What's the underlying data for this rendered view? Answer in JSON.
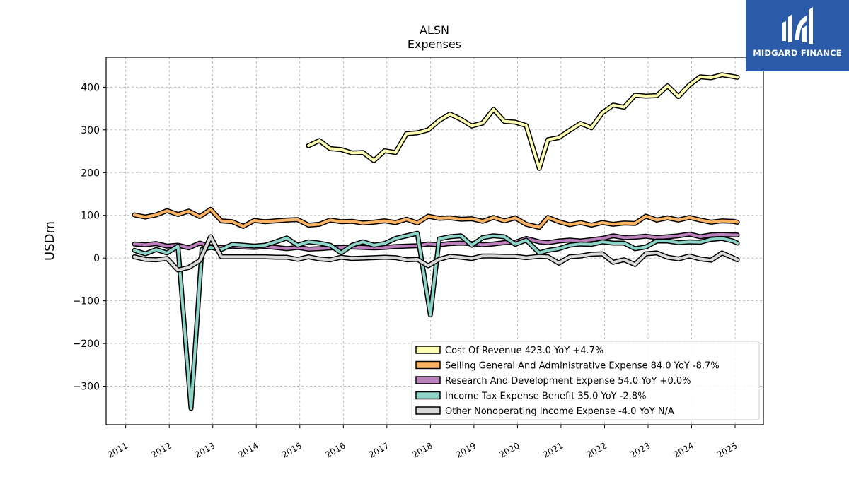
{
  "chart_data": {
    "type": "line",
    "title": "ALSN",
    "subtitle": "Expenses",
    "ylabel": "USDm",
    "xlabel": "",
    "xlim": [
      2010.55,
      2025.65
    ],
    "ylim": [
      -390,
      470
    ],
    "yticks": [
      -300,
      -200,
      -100,
      0,
      100,
      200,
      300,
      400
    ],
    "ytick_labels": [
      "−300",
      "−200",
      "−100",
      "0",
      "100",
      "200",
      "300",
      "400"
    ],
    "xticks": [
      2011,
      2012,
      2013,
      2014,
      2015,
      2016,
      2017,
      2018,
      2019,
      2020,
      2021,
      2022,
      2023,
      2024,
      2025
    ],
    "xtick_labels": [
      "2011",
      "2012",
      "2013",
      "2014",
      "2015",
      "2016",
      "2017",
      "2018",
      "2019",
      "2020",
      "2021",
      "2022",
      "2023",
      "2024",
      "2025"
    ],
    "grid": true,
    "legend_position": "lower-right",
    "series": [
      {
        "name": "Cost Of Revenue",
        "legend_label": "Cost Of Revenue  423.0 YoY +4.7%",
        "color": "#ffffb3",
        "points": [
          [
            2015.2,
            263
          ],
          [
            2015.45,
            275
          ],
          [
            2015.7,
            256
          ],
          [
            2015.95,
            254
          ],
          [
            2016.2,
            246
          ],
          [
            2016.45,
            247
          ],
          [
            2016.7,
            228
          ],
          [
            2016.95,
            251
          ],
          [
            2017.2,
            247
          ],
          [
            2017.45,
            291
          ],
          [
            2017.7,
            293
          ],
          [
            2017.95,
            300
          ],
          [
            2018.2,
            322
          ],
          [
            2018.45,
            337
          ],
          [
            2018.7,
            325
          ],
          [
            2018.95,
            309
          ],
          [
            2019.2,
            316
          ],
          [
            2019.45,
            348
          ],
          [
            2019.7,
            320
          ],
          [
            2019.95,
            318
          ],
          [
            2020.2,
            310
          ],
          [
            2020.5,
            210
          ],
          [
            2020.7,
            277
          ],
          [
            2020.95,
            282
          ],
          [
            2021.2,
            299
          ],
          [
            2021.45,
            315
          ],
          [
            2021.7,
            305
          ],
          [
            2021.95,
            340
          ],
          [
            2022.2,
            358
          ],
          [
            2022.45,
            353
          ],
          [
            2022.7,
            381
          ],
          [
            2022.95,
            379
          ],
          [
            2023.2,
            380
          ],
          [
            2023.45,
            403
          ],
          [
            2023.7,
            378
          ],
          [
            2023.95,
            405
          ],
          [
            2024.2,
            424
          ],
          [
            2024.45,
            422
          ],
          [
            2024.7,
            429
          ],
          [
            2024.95,
            425
          ],
          [
            2025.05,
            423
          ]
        ]
      },
      {
        "name": "Selling General And Administrative Expense",
        "legend_label": "Selling General And Administrative Expense  84.0 YoY -8.7%",
        "color": "#fdb462",
        "points": [
          [
            2011.2,
            101
          ],
          [
            2011.45,
            96
          ],
          [
            2011.7,
            101
          ],
          [
            2011.95,
            111
          ],
          [
            2012.2,
            102
          ],
          [
            2012.45,
            110
          ],
          [
            2012.7,
            97
          ],
          [
            2012.95,
            114
          ],
          [
            2013.2,
            87
          ],
          [
            2013.45,
            85
          ],
          [
            2013.7,
            74
          ],
          [
            2013.95,
            88
          ],
          [
            2014.2,
            85
          ],
          [
            2014.45,
            87
          ],
          [
            2014.7,
            89
          ],
          [
            2014.95,
            90
          ],
          [
            2015.2,
            77
          ],
          [
            2015.45,
            79
          ],
          [
            2015.7,
            89
          ],
          [
            2015.95,
            85
          ],
          [
            2016.2,
            86
          ],
          [
            2016.45,
            82
          ],
          [
            2016.7,
            84
          ],
          [
            2016.95,
            87
          ],
          [
            2017.2,
            83
          ],
          [
            2017.45,
            91
          ],
          [
            2017.7,
            82
          ],
          [
            2017.95,
            98
          ],
          [
            2018.2,
            93
          ],
          [
            2018.45,
            94
          ],
          [
            2018.7,
            91
          ],
          [
            2018.95,
            92
          ],
          [
            2019.2,
            86
          ],
          [
            2019.45,
            95
          ],
          [
            2019.7,
            87
          ],
          [
            2019.95,
            94
          ],
          [
            2020.2,
            79
          ],
          [
            2020.5,
            72
          ],
          [
            2020.7,
            95
          ],
          [
            2020.95,
            85
          ],
          [
            2021.2,
            78
          ],
          [
            2021.45,
            83
          ],
          [
            2021.7,
            77
          ],
          [
            2021.95,
            83
          ],
          [
            2022.2,
            79
          ],
          [
            2022.45,
            82
          ],
          [
            2022.7,
            81
          ],
          [
            2022.95,
            98
          ],
          [
            2023.2,
            89
          ],
          [
            2023.45,
            94
          ],
          [
            2023.7,
            89
          ],
          [
            2023.95,
            95
          ],
          [
            2024.2,
            89
          ],
          [
            2024.45,
            84
          ],
          [
            2024.7,
            87
          ],
          [
            2024.95,
            86
          ],
          [
            2025.05,
            84
          ]
        ]
      },
      {
        "name": "Research And Development Expense",
        "legend_label": "Research And Development Expense  54.0 YoY +0.0%",
        "color": "#bc80bd",
        "points": [
          [
            2011.2,
            33
          ],
          [
            2011.45,
            31
          ],
          [
            2011.7,
            34
          ],
          [
            2011.95,
            28
          ],
          [
            2012.2,
            30
          ],
          [
            2012.45,
            24
          ],
          [
            2012.7,
            35
          ],
          [
            2012.95,
            27
          ],
          [
            2013.2,
            25
          ],
          [
            2013.45,
            28
          ],
          [
            2013.7,
            26
          ],
          [
            2013.95,
            25
          ],
          [
            2014.2,
            27
          ],
          [
            2014.45,
            25
          ],
          [
            2014.7,
            22
          ],
          [
            2014.95,
            25
          ],
          [
            2015.2,
            21
          ],
          [
            2015.45,
            22
          ],
          [
            2015.7,
            24
          ],
          [
            2015.95,
            25
          ],
          [
            2016.2,
            26
          ],
          [
            2016.45,
            25
          ],
          [
            2016.7,
            24
          ],
          [
            2016.95,
            25
          ],
          [
            2017.2,
            27
          ],
          [
            2017.45,
            28
          ],
          [
            2017.7,
            29
          ],
          [
            2017.95,
            33
          ],
          [
            2018.2,
            31
          ],
          [
            2018.45,
            34
          ],
          [
            2018.7,
            35
          ],
          [
            2018.95,
            34
          ],
          [
            2019.2,
            31
          ],
          [
            2019.45,
            33
          ],
          [
            2019.7,
            36
          ],
          [
            2019.95,
            37
          ],
          [
            2020.2,
            46
          ],
          [
            2020.5,
            38
          ],
          [
            2020.7,
            36
          ],
          [
            2020.95,
            40
          ],
          [
            2021.2,
            42
          ],
          [
            2021.45,
            40
          ],
          [
            2021.7,
            43
          ],
          [
            2021.95,
            46
          ],
          [
            2022.2,
            52
          ],
          [
            2022.45,
            48
          ],
          [
            2022.7,
            49
          ],
          [
            2022.95,
            51
          ],
          [
            2023.2,
            48
          ],
          [
            2023.45,
            50
          ],
          [
            2023.7,
            52
          ],
          [
            2023.95,
            56
          ],
          [
            2024.2,
            50
          ],
          [
            2024.45,
            54
          ],
          [
            2024.7,
            55
          ],
          [
            2024.95,
            54
          ],
          [
            2025.05,
            54
          ]
        ]
      },
      {
        "name": "Income Tax Expense Benefit",
        "legend_label": "Income Tax Expense Benefit  35.0 YoY -2.8%",
        "color": "#8dd3c7",
        "points": [
          [
            2011.2,
            18
          ],
          [
            2011.45,
            10
          ],
          [
            2011.7,
            20
          ],
          [
            2011.95,
            12
          ],
          [
            2012.2,
            28
          ],
          [
            2012.5,
            -352
          ],
          [
            2012.75,
            20
          ],
          [
            2012.95,
            25
          ],
          [
            2013.2,
            20
          ],
          [
            2013.45,
            32
          ],
          [
            2013.7,
            30
          ],
          [
            2013.95,
            28
          ],
          [
            2014.2,
            30
          ],
          [
            2014.45,
            38
          ],
          [
            2014.7,
            47
          ],
          [
            2014.95,
            30
          ],
          [
            2015.2,
            38
          ],
          [
            2015.45,
            35
          ],
          [
            2015.7,
            30
          ],
          [
            2015.95,
            12
          ],
          [
            2016.2,
            30
          ],
          [
            2016.45,
            38
          ],
          [
            2016.7,
            30
          ],
          [
            2016.95,
            34
          ],
          [
            2017.2,
            46
          ],
          [
            2017.45,
            52
          ],
          [
            2017.7,
            58
          ],
          [
            2018.0,
            -133
          ],
          [
            2018.2,
            45
          ],
          [
            2018.45,
            50
          ],
          [
            2018.7,
            52
          ],
          [
            2018.95,
            30
          ],
          [
            2019.2,
            48
          ],
          [
            2019.45,
            52
          ],
          [
            2019.7,
            50
          ],
          [
            2019.95,
            32
          ],
          [
            2020.2,
            42
          ],
          [
            2020.5,
            12
          ],
          [
            2020.7,
            18
          ],
          [
            2020.95,
            22
          ],
          [
            2021.2,
            30
          ],
          [
            2021.45,
            33
          ],
          [
            2021.7,
            32
          ],
          [
            2021.95,
            38
          ],
          [
            2022.2,
            35
          ],
          [
            2022.45,
            35
          ],
          [
            2022.7,
            22
          ],
          [
            2022.95,
            26
          ],
          [
            2023.2,
            40
          ],
          [
            2023.45,
            40
          ],
          [
            2023.7,
            36
          ],
          [
            2023.95,
            38
          ],
          [
            2024.2,
            37
          ],
          [
            2024.45,
            44
          ],
          [
            2024.7,
            46
          ],
          [
            2024.95,
            40
          ],
          [
            2025.05,
            35
          ]
        ]
      },
      {
        "name": "Other Nonoperating Income Expense",
        "legend_label": "Other Nonoperating Income Expense  -4.0 YoY N/A",
        "color": "#d9d9d9",
        "points": [
          [
            2011.2,
            3
          ],
          [
            2011.45,
            -3
          ],
          [
            2011.7,
            -4
          ],
          [
            2011.95,
            -1
          ],
          [
            2012.2,
            -28
          ],
          [
            2012.45,
            -22
          ],
          [
            2012.7,
            -6
          ],
          [
            2012.95,
            50
          ],
          [
            2013.2,
            3
          ],
          [
            2013.45,
            3
          ],
          [
            2013.7,
            3
          ],
          [
            2013.95,
            3
          ],
          [
            2014.2,
            3
          ],
          [
            2014.45,
            2
          ],
          [
            2014.7,
            2
          ],
          [
            2014.95,
            -3
          ],
          [
            2015.2,
            3
          ],
          [
            2015.45,
            -2
          ],
          [
            2015.7,
            -4
          ],
          [
            2015.95,
            2
          ],
          [
            2016.2,
            -1
          ],
          [
            2016.45,
            0
          ],
          [
            2016.7,
            1
          ],
          [
            2016.95,
            2
          ],
          [
            2017.2,
            1
          ],
          [
            2017.45,
            -4
          ],
          [
            2017.7,
            -3
          ],
          [
            2017.95,
            -18
          ],
          [
            2018.2,
            -3
          ],
          [
            2018.45,
            4
          ],
          [
            2018.7,
            2
          ],
          [
            2018.95,
            -1
          ],
          [
            2019.2,
            5
          ],
          [
            2019.45,
            5
          ],
          [
            2019.7,
            4
          ],
          [
            2019.95,
            4
          ],
          [
            2020.2,
            1
          ],
          [
            2020.5,
            4
          ],
          [
            2020.7,
            3
          ],
          [
            2020.95,
            -12
          ],
          [
            2021.2,
            3
          ],
          [
            2021.45,
            5
          ],
          [
            2021.7,
            9
          ],
          [
            2021.95,
            10
          ],
          [
            2022.2,
            -10
          ],
          [
            2022.45,
            -4
          ],
          [
            2022.7,
            -15
          ],
          [
            2022.95,
            10
          ],
          [
            2023.2,
            12
          ],
          [
            2023.45,
            2
          ],
          [
            2023.7,
            -2
          ],
          [
            2023.95,
            5
          ],
          [
            2024.2,
            -2
          ],
          [
            2024.45,
            -5
          ],
          [
            2024.7,
            12
          ],
          [
            2024.95,
            1
          ],
          [
            2025.05,
            -4
          ]
        ]
      }
    ]
  },
  "logo": {
    "text": "MIDGARD FINANCE",
    "background": "#2a5aa8",
    "foreground": "#ffffff",
    "icon": "midgard-finance-logo"
  }
}
